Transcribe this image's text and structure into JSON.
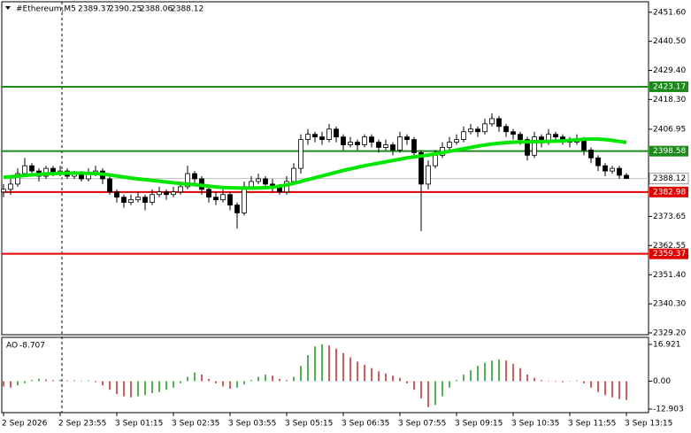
{
  "chart_data": {
    "type": "candlestick",
    "title": "#Ethereum,M5",
    "categories": [
      "2 Sep 2026",
      null,
      null,
      null,
      null,
      null,
      null,
      null,
      "2 Sep 23:55",
      null,
      null,
      null,
      null,
      null,
      null,
      null,
      "3 Sep 01:15",
      null,
      null,
      null,
      null,
      null,
      null,
      null,
      "3 Sep 02:35",
      null,
      null,
      null,
      null,
      null,
      null,
      null,
      "3 Sep 03:55",
      null,
      null,
      null,
      null,
      null,
      null,
      null,
      "3 Sep 05:15",
      null,
      null,
      null,
      null,
      null,
      null,
      null,
      "3 Sep 06:35",
      null,
      null,
      null,
      null,
      null,
      null,
      null,
      "3 Sep 07:55",
      null,
      null,
      null,
      null,
      null,
      null,
      null,
      "3 Sep 09:15",
      null,
      null,
      null,
      null,
      null,
      null,
      null,
      "3 Sep 10:35",
      null,
      null,
      null,
      null,
      null,
      null,
      null,
      "3 Sep 11:55",
      null,
      null,
      null,
      null,
      null,
      null,
      null,
      "3 Sep 13:15"
    ],
    "open": [
      2383,
      2384,
      2386,
      2390,
      2393,
      2391,
      2389,
      2392,
      2390,
      2391,
      2389,
      2390,
      2388,
      2390,
      2391,
      2388,
      2383,
      2381,
      2379,
      2380,
      2381,
      2379,
      2382,
      2383,
      2382,
      2383,
      2385,
      2390,
      2388,
      2384,
      2381,
      2380,
      2382,
      2378,
      2375,
      2385,
      2387,
      2388,
      2386,
      2385,
      2383,
      2387,
      2392,
      2403,
      2405,
      2404,
      2403,
      2407,
      2404,
      2401,
      2402,
      2401,
      2404,
      2402,
      2400,
      2401,
      2399,
      2404,
      2403,
      2398,
      2386,
      2393,
      2397,
      2400,
      2402,
      2403,
      2406,
      2407,
      2406,
      2409,
      2411,
      2408,
      2406,
      2405,
      2403,
      2397,
      2404,
      2402,
      2405,
      2404,
      2403,
      2402,
      2403,
      2399,
      2396,
      2393,
      2391,
      2392,
      2389.37
    ],
    "high": [
      2386,
      2388,
      2392,
      2396,
      2394,
      2392,
      2393,
      2393,
      2393,
      2392,
      2391,
      2391,
      2392,
      2393,
      2392,
      2389,
      2384,
      2382,
      2382,
      2383,
      2382,
      2384,
      2385,
      2384,
      2385,
      2387,
      2393,
      2391,
      2389,
      2385,
      2383,
      2384,
      2383,
      2379,
      2387,
      2389,
      2390,
      2389,
      2388,
      2386,
      2389,
      2394,
      2405,
      2407,
      2406,
      2406,
      2409,
      2408,
      2405,
      2404,
      2403,
      2405,
      2405,
      2403,
      2403,
      2402,
      2406,
      2405,
      2404,
      2399,
      2395,
      2399,
      2402,
      2404,
      2405,
      2408,
      2409,
      2408,
      2411,
      2413,
      2412,
      2409,
      2407,
      2406,
      2404,
      2406,
      2405,
      2407,
      2406,
      2405,
      2404,
      2405,
      2404,
      2400,
      2397,
      2394,
      2393,
      2393,
      2390.25
    ],
    "low": [
      2381,
      2382,
      2385,
      2389,
      2389,
      2387,
      2388,
      2389,
      2389,
      2388,
      2388,
      2387,
      2387,
      2389,
      2386,
      2382,
      2379,
      2377,
      2378,
      2379,
      2376,
      2378,
      2381,
      2380,
      2381,
      2382,
      2384,
      2386,
      2382,
      2379,
      2378,
      2379,
      2376,
      2369,
      2374,
      2384,
      2386,
      2384,
      2383,
      2382,
      2382,
      2386,
      2390,
      2401,
      2402,
      2401,
      2402,
      2402,
      2399,
      2400,
      2399,
      2400,
      2400,
      2398,
      2399,
      2397,
      2398,
      2401,
      2396,
      2368,
      2384,
      2392,
      2396,
      2399,
      2401,
      2402,
      2405,
      2404,
      2405,
      2408,
      2406,
      2404,
      2403,
      2401,
      2395,
      2396,
      2400,
      2401,
      2402,
      2401,
      2400,
      2401,
      2397,
      2394,
      2391,
      2389,
      2390,
      2388,
      2388.06
    ],
    "close": [
      2384,
      2386,
      2390,
      2393,
      2391,
      2389,
      2392,
      2390,
      2391,
      2389,
      2390,
      2388,
      2390,
      2391,
      2388,
      2383,
      2381,
      2379,
      2380,
      2381,
      2379,
      2382,
      2383,
      2382,
      2383,
      2385,
      2390,
      2388,
      2384,
      2381,
      2380,
      2382,
      2378,
      2375,
      2385,
      2387,
      2388,
      2386,
      2385,
      2383,
      2387,
      2392,
      2403,
      2405,
      2404,
      2403,
      2407,
      2404,
      2401,
      2402,
      2401,
      2404,
      2402,
      2400,
      2401,
      2399,
      2404,
      2403,
      2398,
      2386,
      2393,
      2397,
      2400,
      2402,
      2403,
      2406,
      2407,
      2406,
      2409,
      2411,
      2408,
      2406,
      2405,
      2403,
      2397,
      2404,
      2402,
      2405,
      2404,
      2403,
      2402,
      2403,
      2399,
      2396,
      2393,
      2391,
      2392,
      2389.37,
      2388.12
    ],
    "ma": {
      "color": "#00e600",
      "values": [
        2388.6,
        2388.8,
        2389.0,
        2389.3,
        2389.5,
        2389.7,
        2389.9,
        2390.0,
        2390.1,
        2390.2,
        2390.2,
        2390.2,
        2390.1,
        2390.0,
        2389.8,
        2389.5,
        2389.1,
        2388.7,
        2388.3,
        2388.0,
        2387.7,
        2387.4,
        2387.1,
        2386.8,
        2386.5,
        2386.2,
        2386.0,
        2385.8,
        2385.5,
        2385.2,
        2384.9,
        2384.7,
        2384.6,
        2384.5,
        2384.5,
        2384.5,
        2384.5,
        2384.6,
        2384.8,
        2385.2,
        2385.7,
        2386.3,
        2387.0,
        2387.7,
        2388.4,
        2389.1,
        2389.8,
        2390.5,
        2391.2,
        2391.8,
        2392.4,
        2393.0,
        2393.5,
        2394.0,
        2394.5,
        2395.0,
        2395.5,
        2396.0,
        2396.4,
        2396.7,
        2397.1,
        2397.5,
        2398.0,
        2398.5,
        2399.0,
        2399.5,
        2400.0,
        2400.5,
        2400.9,
        2401.3,
        2401.6,
        2401.8,
        2402.0,
        2402.1,
        2402.1,
        2402.2,
        2402.2,
        2402.3,
        2402.4,
        2402.5,
        2402.7,
        2402.9,
        2403.1,
        2403.2,
        2403.2,
        2403.0,
        2402.7,
        2402.3,
        2401.9
      ]
    },
    "levels": [
      {
        "value": 2423.17,
        "color": "#1a8a1a"
      },
      {
        "value": 2398.58,
        "color": "#1a8a1a"
      },
      {
        "value": 2382.98,
        "color": "#e00000"
      },
      {
        "value": 2359.37,
        "color": "#e00000"
      }
    ],
    "ylim": [
      2328.5,
      2455.6
    ],
    "yticks": [
      {
        "value": 2451.6,
        "label": "2451.60"
      },
      {
        "value": 2440.5,
        "label": "2440.50"
      },
      {
        "value": 2429.4,
        "label": "2429.40"
      },
      {
        "value": 2418.3,
        "label": "2418.30"
      },
      2406.95,
      2373.65,
      2362.55,
      {
        "value": 2351.4,
        "label": "2351.40"
      },
      {
        "value": 2340.3,
        "label": "2340.30"
      },
      {
        "value": 2329.2,
        "label": "2329.20"
      }
    ],
    "ao": {
      "title": "AO",
      "up_color": "#1a9a1a",
      "down_color": "#d42020",
      "values": [
        -2.5,
        -3,
        -2,
        -1,
        0.5,
        1.2,
        0.8,
        0.5,
        0.6,
        0.3,
        0.4,
        0.2,
        0.3,
        -0.5,
        -2,
        -4,
        -6,
        -7,
        -7.5,
        -7,
        -6.5,
        -5.5,
        -5,
        -4,
        -3,
        -1,
        2,
        4,
        3,
        1,
        -1,
        -2.5,
        -3.5,
        -3,
        -1.5,
        0.5,
        2,
        3,
        2.5,
        1,
        0.5,
        2,
        7,
        12,
        16,
        17,
        16.5,
        15,
        13,
        11,
        9,
        7.5,
        6,
        4.5,
        3.5,
        2.5,
        1.5,
        -1,
        -4,
        -8,
        -12,
        -11,
        -7,
        -3,
        0.5,
        3,
        5,
        7,
        8.5,
        9.5,
        10,
        9.5,
        8,
        6,
        3,
        1.5,
        0.5,
        0.2,
        -0.3,
        -0.5,
        -0.2,
        0.3,
        -1,
        -3,
        -5,
        -6.5,
        -7.5,
        -8.3,
        -8.707
      ],
      "ylim": [
        -14.54,
        20.19
      ],
      "yticks": [
        16.921,
        {
          "value": 0,
          "label": "0.00"
        },
        -12.903
      ]
    }
  }
}
